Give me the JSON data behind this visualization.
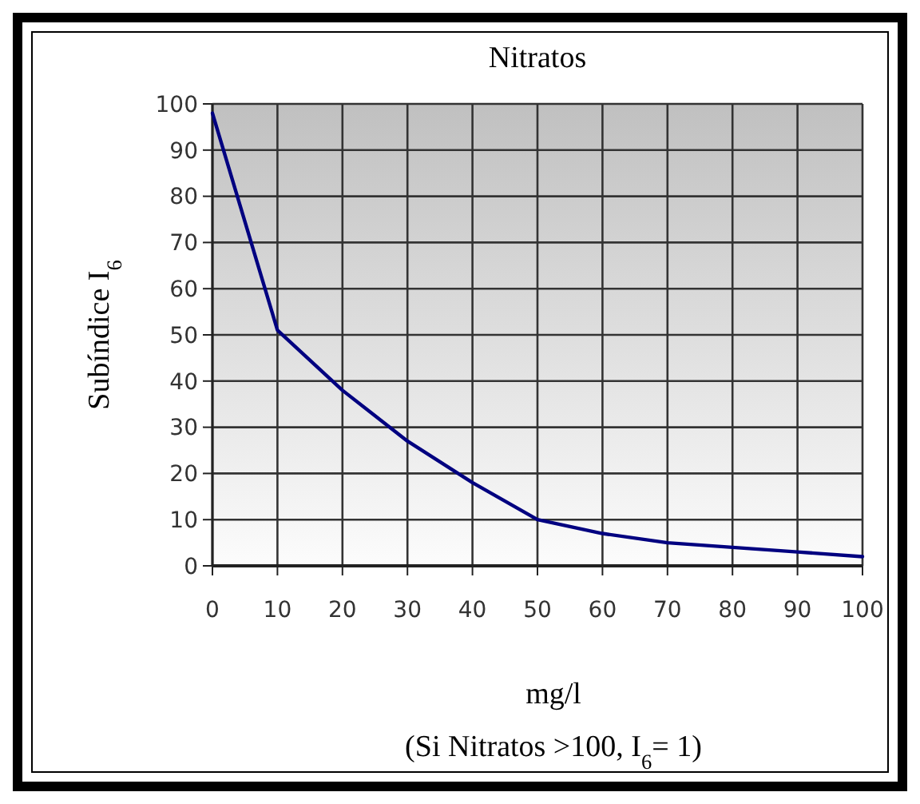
{
  "chart_data": {
    "type": "line",
    "title": "Nitratos",
    "xlabel": "mg/l",
    "ylabel": "Subíndice  I$_{6}$",
    "annotations": [
      "(Si Nitratos >100, I$_{6}$= 1)"
    ],
    "x": [
      0,
      10,
      20,
      30,
      40,
      50,
      60,
      70,
      80,
      90,
      100
    ],
    "series": [
      {
        "color": "#000080",
        "values": [
          98,
          51,
          38,
          27,
          18,
          10,
          7,
          5,
          4,
          3,
          2
        ]
      }
    ],
    "xlim": [
      0,
      100
    ],
    "xticks": [
      0,
      10,
      20,
      30,
      40,
      50,
      60,
      70,
      80,
      90,
      100
    ],
    "ylim": [
      0,
      100
    ],
    "yticks": [
      0,
      10,
      20,
      30,
      40,
      50,
      60,
      70,
      80,
      90,
      100
    ],
    "grid": true,
    "marker": "none",
    "line_style": "solid"
  }
}
